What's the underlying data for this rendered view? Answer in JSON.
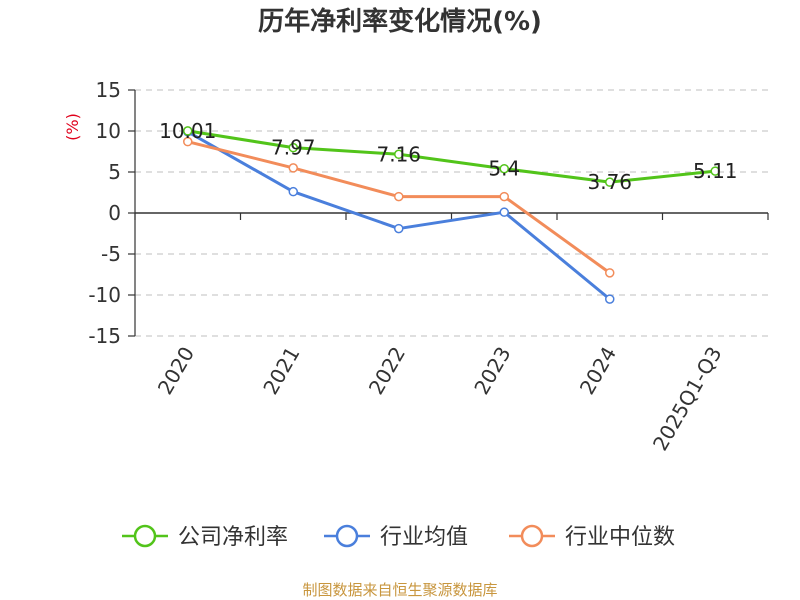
{
  "chart_data": {
    "type": "line",
    "title": "历年净利率变化情况(%)",
    "unit_label": "(%)",
    "categories": [
      "2020",
      "2021",
      "2022",
      "2023",
      "2024",
      "2025Q1-Q3"
    ],
    "ylim": [
      -15,
      15
    ],
    "yticks": [
      "15",
      "10",
      "5",
      "0",
      "-5",
      "-10",
      "-15"
    ],
    "grid": true,
    "legend_position": "bottom",
    "series": [
      {
        "name": "公司净利率",
        "color": "#52c41a",
        "values": [
          10.01,
          7.97,
          7.16,
          5.4,
          3.76,
          5.11
        ],
        "labels": [
          "10.01",
          "7.97",
          "7.16",
          "5.4",
          "3.76",
          "5.11"
        ]
      },
      {
        "name": "行业均值",
        "color": "#4a7fdc",
        "values": [
          9.9,
          2.6,
          -1.9,
          0.1,
          -10.5,
          null
        ]
      },
      {
        "name": "行业中位数",
        "color": "#f28c5a",
        "values": [
          8.7,
          5.5,
          2.0,
          2.0,
          -7.3,
          null
        ]
      }
    ]
  },
  "source": "制图数据来自恒生聚源数据库",
  "colors": {
    "unit": "#e0001b",
    "source": "#c8963e",
    "axis": "#333333",
    "grid": "#cccccc"
  }
}
